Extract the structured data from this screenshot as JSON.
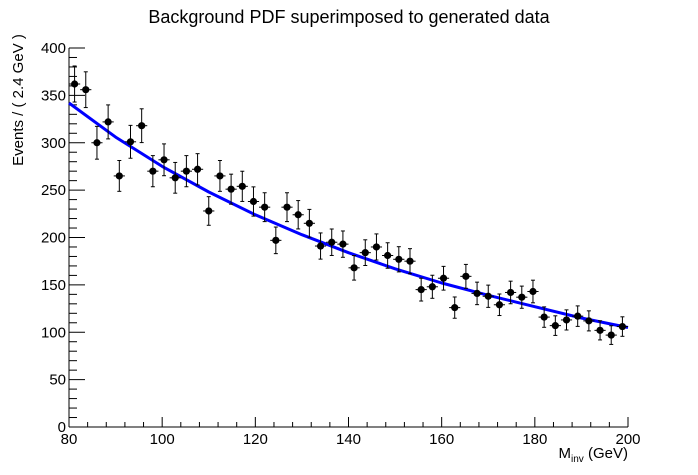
{
  "chart_data": {
    "type": "scatter",
    "title": "Background PDF superimposed to generated data",
    "xlabel_main": "M",
    "xlabel_sub": "inv",
    "xlabel_unit": " (GeV)",
    "ylabel": "Events / ( 2.4 GeV )",
    "xlim": [
      80,
      200
    ],
    "ylim": [
      0,
      400
    ],
    "x_ticks": [
      80,
      100,
      120,
      140,
      160,
      180,
      200
    ],
    "y_ticks": [
      0,
      50,
      100,
      150,
      200,
      250,
      300,
      350,
      400
    ],
    "bin_width": 2.4,
    "grid": false,
    "colors": {
      "curve": "#0000ff",
      "points": "#000000",
      "background": "#ffffff"
    },
    "series": [
      {
        "type": "points_with_errors",
        "x": [
          81.2,
          83.6,
          86.0,
          88.4,
          90.8,
          93.2,
          95.6,
          98.0,
          100.4,
          102.8,
          105.2,
          107.6,
          110.0,
          112.4,
          114.8,
          117.2,
          119.6,
          122.0,
          124.4,
          126.8,
          129.2,
          131.6,
          134.0,
          136.4,
          138.8,
          141.2,
          143.6,
          146.0,
          148.4,
          150.8,
          153.2,
          155.6,
          158.0,
          160.4,
          162.8,
          165.2,
          167.6,
          170.0,
          172.4,
          174.8,
          177.2,
          179.6,
          182.0,
          184.4,
          186.8,
          189.2,
          191.6,
          194.0,
          196.4,
          198.8
        ],
        "y": [
          362,
          356,
          300,
          322,
          265,
          301,
          318,
          270,
          282,
          263,
          270,
          272,
          228,
          265,
          251,
          254,
          238,
          232,
          197,
          232,
          224,
          215,
          191,
          195,
          193,
          168,
          184,
          190,
          181,
          177,
          175,
          145,
          148,
          157,
          126,
          159,
          141,
          138,
          129,
          142,
          137,
          143,
          116,
          107,
          113,
          117,
          112,
          102,
          97,
          106
        ]
      },
      {
        "type": "curve",
        "x": [
          80,
          90,
          100,
          110,
          120,
          130,
          140,
          150,
          160,
          170,
          180,
          190,
          200
        ],
        "y": [
          342,
          306,
          275,
          248,
          224,
          203,
          184,
          167,
          152,
          139,
          127,
          115,
          105
        ]
      }
    ]
  }
}
